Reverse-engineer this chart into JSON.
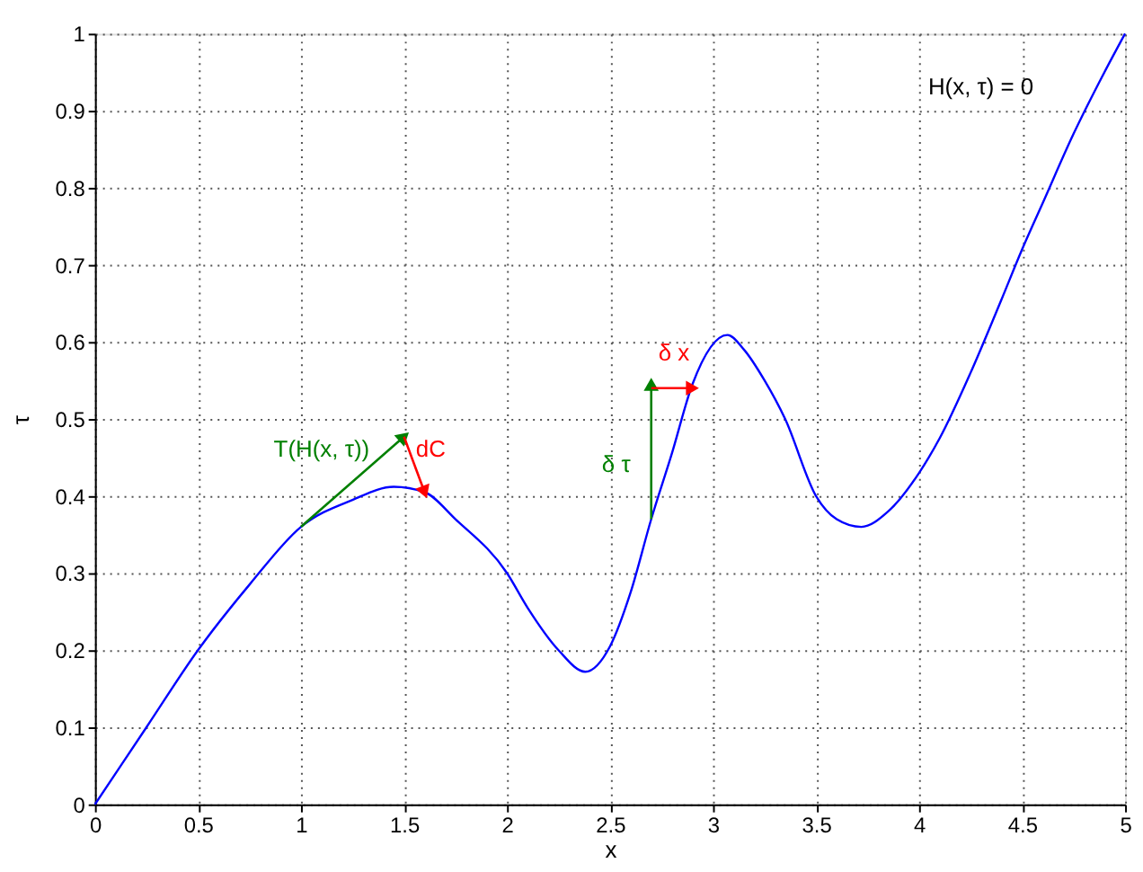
{
  "chart_data": {
    "type": "line",
    "xlabel": "x",
    "ylabel": "τ",
    "x": [
      0,
      0.25,
      0.5,
      0.75,
      1,
      1.25,
      1.45,
      1.6,
      1.75,
      2,
      2.1,
      2.25,
      2.38,
      2.5,
      2.6,
      2.7,
      2.8,
      2.9,
      3.07,
      3.15,
      3.25,
      3.35,
      3.5,
      3.6,
      3.72,
      3.85,
      4,
      4.1,
      4.25,
      4.4,
      4.5,
      4.6,
      4.75,
      4.9,
      5
    ],
    "series": [
      {
        "color": "#0000ff",
        "values": [
          0,
          0.1,
          0.2,
          0.285,
          0.36,
          0.395,
          0.412,
          0.405,
          0.37,
          0.3,
          0.255,
          0.2,
          0.172,
          0.205,
          0.275,
          0.37,
          0.455,
          0.545,
          0.609,
          0.59,
          0.55,
          0.5,
          0.4,
          0.37,
          0.36,
          0.38,
          0.43,
          0.475,
          0.56,
          0.655,
          0.72,
          0.78,
          0.87,
          0.95,
          1.0
        ]
      }
    ],
    "xlim": [
      0,
      5
    ],
    "ylim": [
      0,
      1
    ],
    "xticks": [
      0,
      0.5,
      1,
      1.5,
      2,
      2.5,
      3,
      3.5,
      4,
      4.5,
      5
    ],
    "yticks": [
      0,
      0.1,
      0.2,
      0.3,
      0.4,
      0.5,
      0.6,
      0.7,
      0.8,
      0.9,
      1
    ],
    "grid": true,
    "line_style": "solid",
    "marker": "none",
    "annotations": [
      "H(x, τ) = 0",
      "T(H(x, τ))",
      "dC",
      "δ τ",
      "δ x"
    ]
  }
}
